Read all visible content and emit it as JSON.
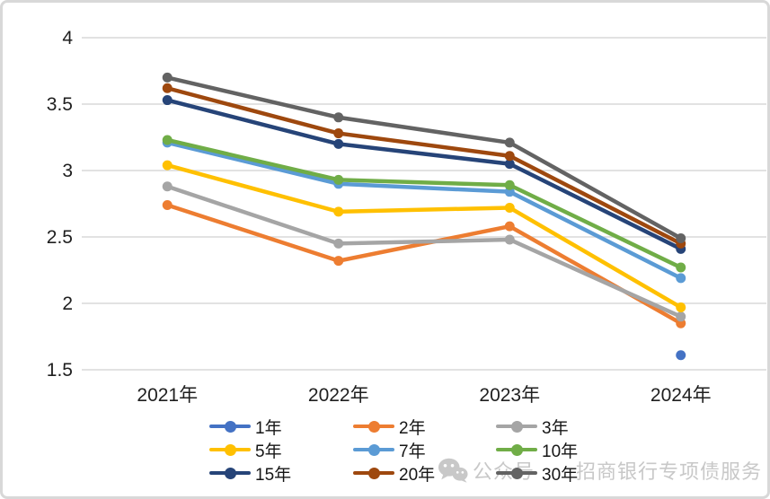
{
  "chart_data": {
    "type": "line",
    "title": "",
    "xlabel": "",
    "ylabel": "",
    "categories": [
      "2021年",
      "2022年",
      "2023年",
      "2024年"
    ],
    "series": [
      {
        "name": "1年",
        "color": "#4472C4",
        "values": [
          null,
          null,
          null,
          1.61
        ]
      },
      {
        "name": "2年",
        "color": "#ED7D31",
        "values": [
          2.74,
          2.32,
          2.58,
          1.85
        ]
      },
      {
        "name": "3年",
        "color": "#A5A5A5",
        "values": [
          2.88,
          2.45,
          2.48,
          1.9
        ]
      },
      {
        "name": "5年",
        "color": "#FFC000",
        "values": [
          3.04,
          2.69,
          2.72,
          1.97
        ]
      },
      {
        "name": "7年",
        "color": "#5B9BD5",
        "values": [
          3.21,
          2.9,
          2.84,
          2.19
        ]
      },
      {
        "name": "10年",
        "color": "#70AD47",
        "values": [
          3.23,
          2.93,
          2.89,
          2.27
        ]
      },
      {
        "name": "15年",
        "color": "#264478",
        "values": [
          3.53,
          3.2,
          3.05,
          2.41
        ]
      },
      {
        "name": "20年",
        "color": "#9E480E",
        "values": [
          3.62,
          3.28,
          3.11,
          2.45
        ]
      },
      {
        "name": "30年",
        "color": "#636363",
        "values": [
          3.7,
          3.4,
          3.21,
          2.49
        ]
      }
    ],
    "ylim": [
      1.5,
      4
    ],
    "ytick_step": 0.5,
    "yticks": [
      "4",
      "3.5",
      "3",
      "2.5",
      "2",
      "1.5"
    ],
    "grid": true,
    "gridline_color": "#d9d9d9",
    "legend_position": "bottom",
    "legend_columns": 3
  },
  "watermark": {
    "prefix": "公众号",
    "brand": "招商银行专项债服务",
    "color": "#c8c8c8"
  }
}
